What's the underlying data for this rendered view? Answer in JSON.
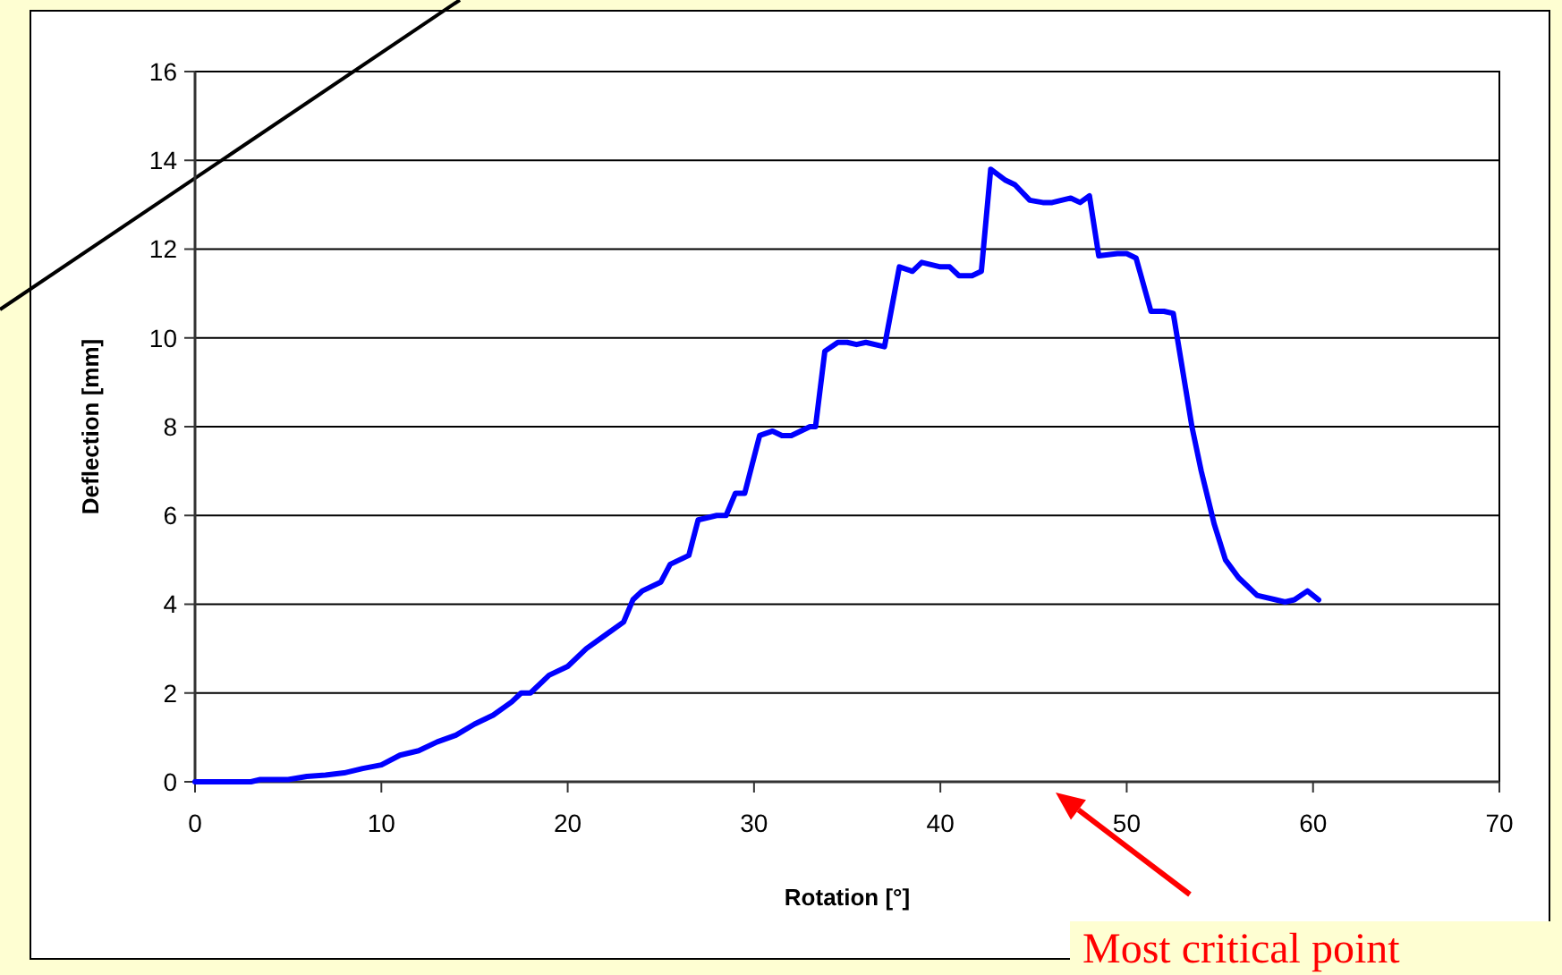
{
  "chart_data": {
    "type": "line",
    "xlabel": "Rotation [°]",
    "ylabel": "Deflection [mm]",
    "xlim": [
      0,
      70
    ],
    "xticks": [
      0,
      10,
      20,
      30,
      40,
      50,
      60,
      70
    ],
    "ylim": [
      0,
      16
    ],
    "yticks": [
      0,
      2,
      4,
      6,
      8,
      10,
      12,
      14,
      16
    ],
    "grid": "y",
    "marker": "none",
    "line_style": "solid",
    "series": [
      {
        "color": "#0000ff",
        "x": [
          0,
          3,
          3.5,
          5,
          6,
          7,
          8,
          9,
          10,
          11,
          12,
          13,
          14,
          15,
          16,
          17,
          17.5,
          18,
          19,
          20,
          21,
          22,
          23,
          23.5,
          24,
          25,
          25.5,
          26,
          26.5,
          27,
          28,
          28.5,
          29,
          29.5,
          30.3,
          31,
          31.5,
          32,
          33,
          33.3,
          33.8,
          34.5,
          35,
          35.5,
          36,
          37,
          37.8,
          38.5,
          39,
          40,
          40.5,
          41,
          41.7,
          42.2,
          42.7,
          43.5,
          44,
          44.8,
          45.5,
          46,
          47,
          47.5,
          48,
          48.5,
          49.5,
          50,
          50.5,
          51.3,
          52,
          52.5,
          53.5,
          54,
          54.7,
          55.3,
          56,
          57,
          58,
          58.5,
          59,
          59.7,
          60.3
        ],
        "values": [
          0,
          0,
          0.05,
          0.05,
          0.12,
          0.15,
          0.2,
          0.3,
          0.38,
          0.6,
          0.7,
          0.9,
          1.05,
          1.3,
          1.5,
          1.8,
          2,
          2,
          2.4,
          2.6,
          3,
          3.3,
          3.6,
          4.1,
          4.3,
          4.5,
          4.9,
          5,
          5.1,
          5.9,
          6,
          6,
          6.5,
          6.5,
          7.8,
          7.9,
          7.8,
          7.8,
          8,
          8,
          9.7,
          9.9,
          9.9,
          9.85,
          9.9,
          9.8,
          11.6,
          11.5,
          11.7,
          11.6,
          11.6,
          11.4,
          11.4,
          11.5,
          13.8,
          13.55,
          13.45,
          13.1,
          13.05,
          13.05,
          13.15,
          13.05,
          13.2,
          11.85,
          11.9,
          11.9,
          11.8,
          10.6,
          10.6,
          10.55,
          8,
          7,
          5.8,
          5,
          4.6,
          4.2,
          4.1,
          4.05,
          4.1,
          4.3,
          4.1
        ]
      }
    ],
    "annotations": [
      "Most critical point"
    ]
  }
}
